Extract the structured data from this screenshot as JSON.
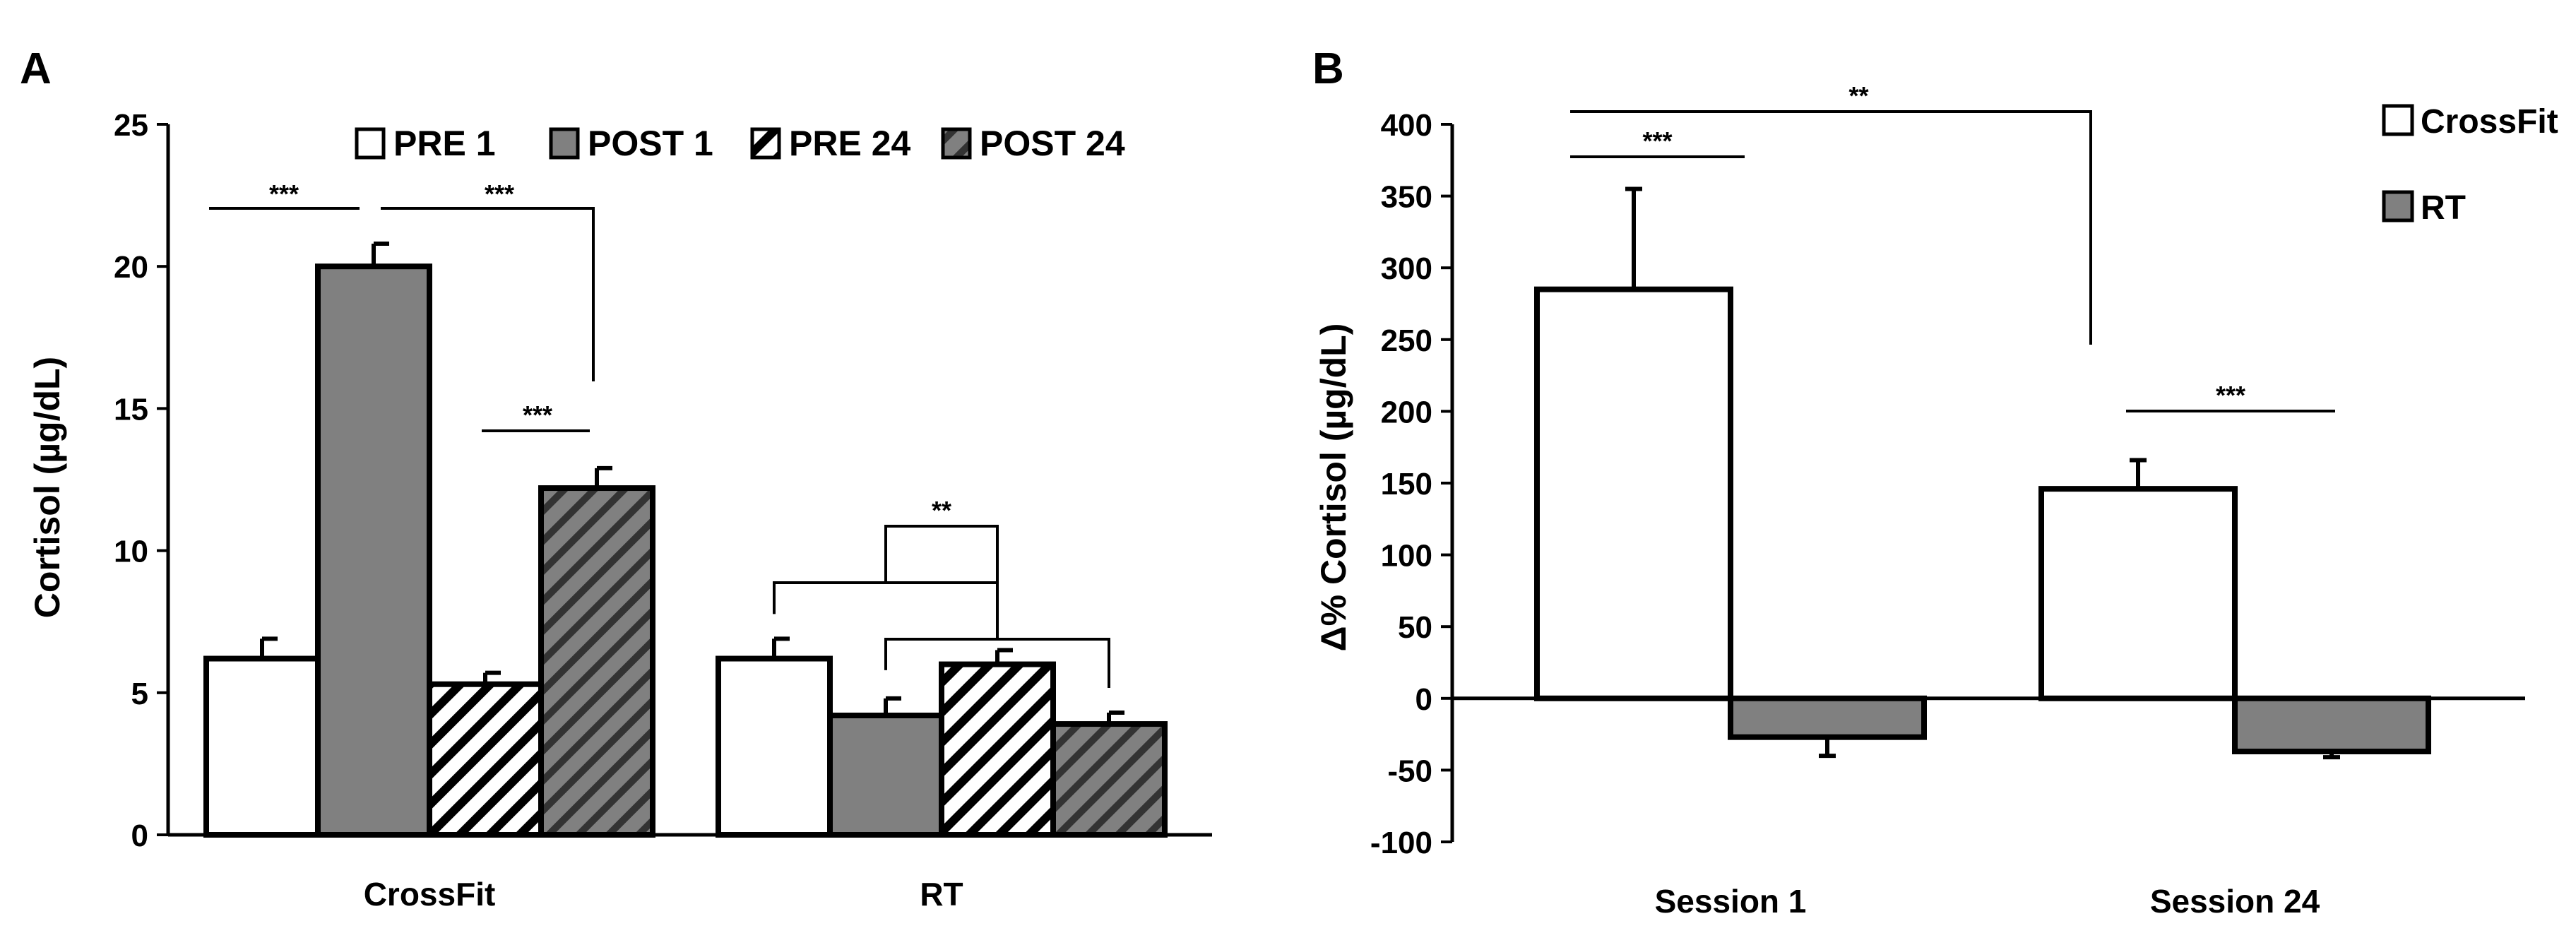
{
  "colors": {
    "gray": "#808080",
    "white": "#ffffff",
    "black": "#000000"
  },
  "chart_data": [
    {
      "type": "bar",
      "panel_label": "A",
      "ylabel": "Cortisol  (µg/dL)",
      "xlabel": "",
      "ylim": [
        0,
        25
      ],
      "yticks": [
        "0",
        "5",
        "10",
        "15",
        "20",
        "25"
      ],
      "categories": [
        "CrossFit",
        "RT"
      ],
      "legend_position": "top",
      "series": [
        {
          "name": "PRE 1",
          "fill": "white",
          "values": [
            6.2,
            6.2
          ],
          "errors": [
            0.7,
            0.7
          ]
        },
        {
          "name": "POST 1",
          "fill": "gray",
          "values": [
            20.0,
            4.2
          ],
          "errors": [
            0.8,
            0.6
          ]
        },
        {
          "name": "PRE 24",
          "fill": "white-hatch",
          "values": [
            5.3,
            6.0
          ],
          "errors": [
            0.4,
            0.5
          ]
        },
        {
          "name": "POST 24",
          "fill": "gray-hatch",
          "values": [
            12.2,
            3.9
          ],
          "errors": [
            0.7,
            0.4
          ]
        }
      ],
      "significance": [
        {
          "label": "***",
          "between": "CrossFit PRE 1 – POST 1"
        },
        {
          "label": "***",
          "between": "CrossFit POST 1 – POST 24"
        },
        {
          "label": "***",
          "between": "CrossFit PRE 24 – POST 24"
        },
        {
          "label": "**",
          "between": "RT (PRE 1 vs PRE 24) – (POST 1 vs POST 24)"
        }
      ]
    },
    {
      "type": "bar",
      "panel_label": "B",
      "ylabel": "Δ% Cortisol  (µg/dL)",
      "xlabel": "",
      "ylim": [
        -100,
        400
      ],
      "yticks": [
        "-100",
        "-50",
        "0",
        "50",
        "100",
        "150",
        "200",
        "250",
        "300",
        "350",
        "400"
      ],
      "categories": [
        "Session 1",
        "Session 24"
      ],
      "legend_position": "top-right",
      "series": [
        {
          "name": "CrossFit",
          "fill": "white",
          "values": [
            285,
            146
          ],
          "errors": [
            70,
            20
          ]
        },
        {
          "name": "RT",
          "fill": "gray",
          "values": [
            -27,
            -37
          ],
          "errors": [
            13,
            4
          ]
        }
      ],
      "significance": [
        {
          "label": "***",
          "between": "Session 1 CrossFit – RT"
        },
        {
          "label": "**",
          "between": "CrossFit Session 1 – Session 24"
        },
        {
          "label": "***",
          "between": "Session 24 CrossFit – RT"
        }
      ]
    }
  ]
}
